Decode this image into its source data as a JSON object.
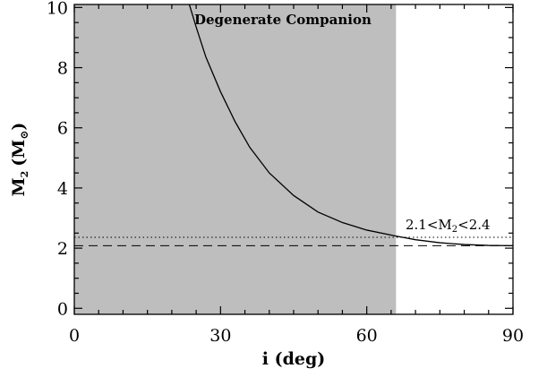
{
  "chart_data": {
    "type": "line",
    "xlabel": "i (deg)",
    "ylabel_main": "M",
    "ylabel_sub": "2",
    "ylabel_unit_open": "(M",
    "ylabel_unit_sym": "⊙",
    "ylabel_unit_close": ")",
    "xlim": [
      0,
      90
    ],
    "ylim": [
      -0.2,
      10.1
    ],
    "x_ticks": [
      {
        "value": 0,
        "label": "0"
      },
      {
        "value": 30,
        "label": "30"
      },
      {
        "value": 60,
        "label": "60"
      },
      {
        "value": 90,
        "label": "90"
      }
    ],
    "y_ticks": [
      {
        "value": 0,
        "label": "0"
      },
      {
        "value": 2,
        "label": "2"
      },
      {
        "value": 4,
        "label": "4"
      },
      {
        "value": 6,
        "label": "6"
      },
      {
        "value": 8,
        "label": "8"
      },
      {
        "value": 10,
        "label": "10"
      }
    ],
    "x_minor_step": 5,
    "y_minor_step": 0.5,
    "shaded_region": {
      "x_range": [
        0,
        66
      ],
      "label": "Degenerate Companion",
      "color": "#bebebe"
    },
    "curve": {
      "function": "M2 vs inclination",
      "x": [
        23.6,
        25,
        27,
        30,
        33,
        36,
        40,
        45,
        50,
        55,
        60,
        66,
        70,
        75,
        80,
        85,
        90
      ],
      "y": [
        10.1,
        9.35,
        8.35,
        7.2,
        6.2,
        5.35,
        4.5,
        3.75,
        3.2,
        2.85,
        2.6,
        2.4,
        2.28,
        2.18,
        2.12,
        2.09,
        2.08
      ]
    },
    "reference_lines": [
      {
        "style": "dashed",
        "y": 2.08
      },
      {
        "style": "dotted",
        "y": 2.36
      }
    ],
    "annotation": {
      "prefix": "2.1<M",
      "sub": "2",
      "suffix": "<2.4"
    }
  }
}
